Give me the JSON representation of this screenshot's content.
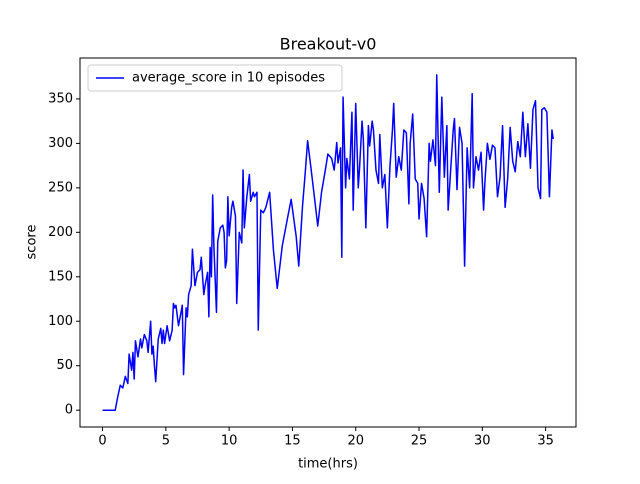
{
  "chart_data": {
    "type": "line",
    "title": "Breakout-v0",
    "xlabel": "time(hrs)",
    "ylabel": "score",
    "x": [
      0,
      0.5,
      1.0,
      1.2,
      1.4,
      1.6,
      1.8,
      2.0,
      2.1,
      2.3,
      2.4,
      2.5,
      2.6,
      2.8,
      3.0,
      3.1,
      3.3,
      3.5,
      3.6,
      3.8,
      3.9,
      4.0,
      4.1,
      4.2,
      4.4,
      4.6,
      4.7,
      4.8,
      4.9,
      5.1,
      5.3,
      5.5,
      5.6,
      5.7,
      5.8,
      6.0,
      6.2,
      6.3,
      6.4,
      6.6,
      6.7,
      6.8,
      7.0,
      7.1,
      7.3,
      7.5,
      7.7,
      7.8,
      8.0,
      8.1,
      8.3,
      8.4,
      8.5,
      8.6,
      8.7,
      8.8,
      9.0,
      9.1,
      9.3,
      9.5,
      9.6,
      9.7,
      9.8,
      9.9,
      10.0,
      10.2,
      10.3,
      10.5,
      10.6,
      10.8,
      11.0,
      11.1,
      11.2,
      11.4,
      11.6,
      11.7,
      11.9,
      12.0,
      12.2,
      12.3,
      12.5,
      12.7,
      12.9,
      13.2,
      13.5,
      13.8,
      14.2,
      14.6,
      14.9,
      15.3,
      15.5,
      15.8,
      16.0,
      16.2,
      16.5,
      16.8,
      17.0,
      17.3,
      17.6,
      17.8,
      18.1,
      18.3,
      18.5,
      18.6,
      18.8,
      18.9,
      19.0,
      19.2,
      19.3,
      19.5,
      19.7,
      19.8,
      20.0,
      20.2,
      20.3,
      20.5,
      20.6,
      20.8,
      21.0,
      21.1,
      21.3,
      21.4,
      21.6,
      21.8,
      21.9,
      22.1,
      22.3,
      22.5,
      22.7,
      22.9,
      23.0,
      23.2,
      23.4,
      23.6,
      23.8,
      24.0,
      24.2,
      24.3,
      24.5,
      24.7,
      24.9,
      25.0,
      25.2,
      25.4,
      25.6,
      25.8,
      25.9,
      26.1,
      26.3,
      26.4,
      26.6,
      26.8,
      27.0,
      27.2,
      27.3,
      27.5,
      27.7,
      27.8,
      28.0,
      28.2,
      28.4,
      28.6,
      28.8,
      29.0,
      29.2,
      29.3,
      29.5,
      29.7,
      29.9,
      30.1,
      30.2,
      30.4,
      30.6,
      30.8,
      31.0,
      31.2,
      31.4,
      31.6,
      31.8,
      32.0,
      32.2,
      32.4,
      32.6,
      32.8,
      33.0,
      33.2,
      33.4,
      33.6,
      33.8,
      34.0,
      34.2,
      34.4,
      34.6,
      34.7,
      34.9,
      35.1,
      35.3,
      35.5,
      35.6
    ],
    "series": [
      {
        "name": "average_score in 10 episodes",
        "color": "#0000ff",
        "values": [
          0,
          0,
          0,
          15,
          28,
          25,
          38,
          30,
          63,
          45,
          65,
          35,
          78,
          60,
          80,
          70,
          85,
          78,
          65,
          100,
          63,
          72,
          50,
          32,
          80,
          92,
          75,
          90,
          75,
          95,
          78,
          90,
          120,
          115,
          118,
          95,
          110,
          118,
          40,
          115,
          105,
          130,
          140,
          181,
          140,
          155,
          158,
          172,
          130,
          140,
          155,
          105,
          183,
          150,
          242,
          183,
          110,
          190,
          205,
          208,
          200,
          160,
          168,
          240,
          196,
          228,
          235,
          218,
          120,
          200,
          188,
          270,
          205,
          240,
          265,
          235,
          245,
          240,
          245,
          90,
          225,
          222,
          228,
          245,
          180,
          137,
          185,
          215,
          237,
          195,
          162,
          230,
          265,
          303,
          268,
          232,
          207,
          245,
          270,
          288,
          283,
          270,
          301,
          278,
          295,
          172,
          352,
          250,
          283,
          260,
          335,
          225,
          345,
          250,
          272,
          325,
          305,
          205,
          320,
          297,
          325,
          315,
          270,
          255,
          310,
          250,
          265,
          205,
          273,
          315,
          345,
          262,
          285,
          270,
          315,
          312,
          232,
          300,
          333,
          260,
          255,
          215,
          255,
          238,
          195,
          300,
          280,
          304,
          275,
          377,
          245,
          352,
          262,
          320,
          225,
          270,
          315,
          328,
          248,
          318,
          300,
          162,
          295,
          250,
          356,
          250,
          285,
          270,
          290,
          225,
          255,
          300,
          282,
          298,
          295,
          240,
          262,
          320,
          228,
          260,
          318,
          280,
          268,
          302,
          285,
          335,
          285,
          322,
          272,
          338,
          348,
          250,
          238,
          338,
          340,
          335,
          240,
          315,
          305
        ]
      }
    ],
    "xlim": [
      -1.78,
      37.4
    ],
    "ylim": [
      -18.9,
      396
    ],
    "xticks": [
      0,
      5,
      10,
      15,
      20,
      25,
      30,
      35
    ],
    "yticks": [
      0,
      50,
      100,
      150,
      200,
      250,
      300,
      350
    ],
    "legend": "upper left"
  }
}
